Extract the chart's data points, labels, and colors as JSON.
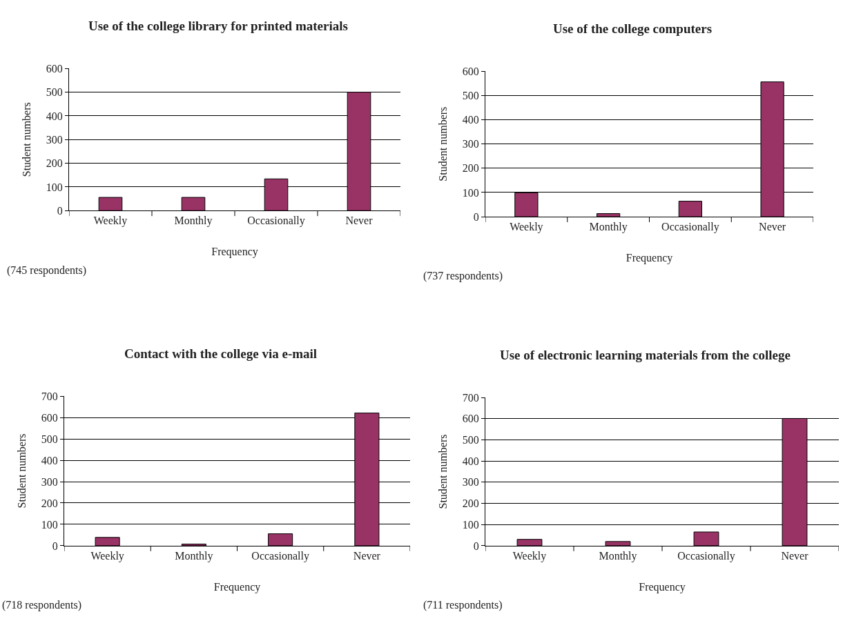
{
  "chart_data": [
    {
      "type": "bar",
      "title": "Use of the college library for printed materials",
      "xlabel": "Frequency",
      "ylabel": "Student numbers",
      "annotations": [
        "(745 respondents)"
      ],
      "categories": [
        "Weekly",
        "Monthly",
        "Occasionally",
        "Never"
      ],
      "values": [
        56,
        56,
        134,
        500
      ],
      "color": "#993366",
      "ylim": [
        0,
        600
      ],
      "yticks": [
        0,
        100,
        200,
        300,
        400,
        500,
        600
      ],
      "grid": "y"
    },
    {
      "type": "bar",
      "title": "Use of the college computers",
      "xlabel": "Frequency",
      "ylabel": "Student numbers",
      "annotations": [
        "(737 respondents)"
      ],
      "categories": [
        "Weekly",
        "Monthly",
        "Occasionally",
        "Never"
      ],
      "values": [
        99,
        13,
        64,
        556
      ],
      "color": "#993366",
      "ylim": [
        0,
        600
      ],
      "yticks": [
        0,
        100,
        200,
        300,
        400,
        500,
        600
      ],
      "grid": "y"
    },
    {
      "type": "bar",
      "title": "Contact with the college via e-mail",
      "xlabel": "Frequency",
      "ylabel": "Student numbers",
      "annotations": [
        "(718 respondents)"
      ],
      "categories": [
        "Weekly",
        "Monthly",
        "Occasionally",
        "Never"
      ],
      "values": [
        39,
        8,
        56,
        621
      ],
      "color": "#993366",
      "ylim": [
        0,
        700
      ],
      "yticks": [
        0,
        100,
        200,
        300,
        400,
        500,
        600,
        700
      ],
      "grid": "y"
    },
    {
      "type": "bar",
      "title": "Use of electronic learning materials from the college",
      "xlabel": "Frequency",
      "ylabel": "Student numbers",
      "annotations": [
        "(711 respondents)"
      ],
      "categories": [
        "Weekly",
        "Monthly",
        "Occasionally",
        "Never"
      ],
      "values": [
        30,
        20,
        65,
        601
      ],
      "color": "#993366",
      "ylim": [
        0,
        700
      ],
      "yticks": [
        0,
        100,
        200,
        300,
        400,
        500,
        600,
        700
      ],
      "grid": "y"
    }
  ]
}
